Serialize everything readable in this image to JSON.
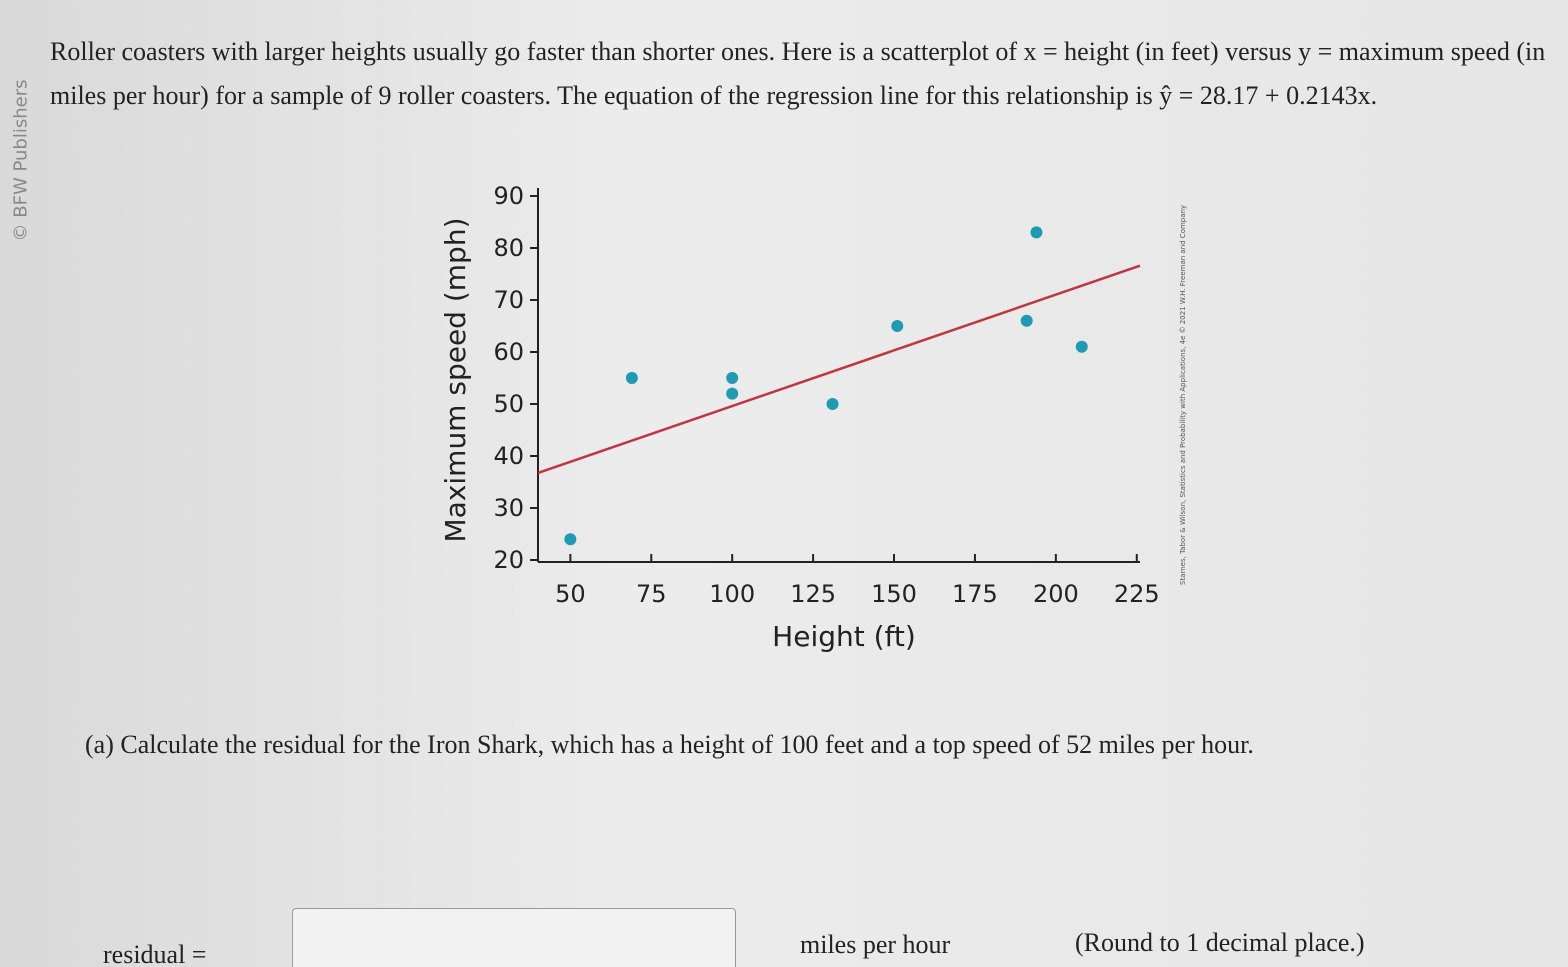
{
  "side_credit": "© BFW Publishers",
  "intro": "Roller coasters with larger heights usually go faster than shorter ones. Here is a scatterplot of x = height (in feet) versus y = maximum speed (in miles per hour) for a sample of 9 roller coasters. The equation of the regression line for this relationship is ŷ = 28.17 + 0.2143x.",
  "chart_data": {
    "type": "scatter",
    "x_label": "Height (ft)",
    "y_label": "Maximum speed (mph)",
    "credit": "Starnes, Tabor & Wilson, Statistics and Probability with Applications, 4e © 2021 W.H. Freeman and Company",
    "series": [
      {
        "name": "Roller coasters",
        "color": "#1f9ab4",
        "x": [
          50,
          69,
          100,
          100,
          131,
          151,
          191,
          194,
          208
        ],
        "values": [
          24,
          55,
          55,
          52,
          50,
          65,
          66,
          83,
          61
        ]
      }
    ],
    "line": {
      "intercept": 28.17,
      "slope": 0.2143,
      "color": "#c2343f"
    },
    "xlim": [
      40,
      226
    ],
    "ylim": [
      20,
      90
    ],
    "xticks": [
      50,
      75,
      100,
      125,
      150,
      175,
      200,
      225
    ],
    "yticks": [
      20,
      30,
      40,
      50,
      60,
      70,
      80,
      90
    ]
  },
  "question": "(a) Calculate the residual for the Iron Shark, which has a height of 100 feet and a top speed of 52 miles per hour.",
  "answer": {
    "label": "residual =",
    "unit": "miles per hour",
    "note": "(Round to 1 decimal place.)"
  }
}
